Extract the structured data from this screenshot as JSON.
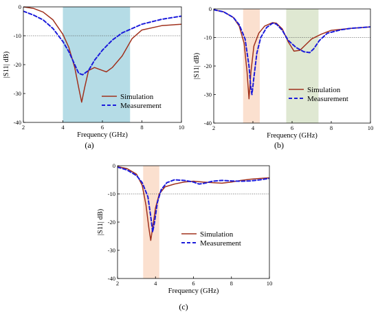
{
  "colors": {
    "simulation": "#a0301c",
    "measurement": "#1a1adb",
    "band_blue": "#b5dce6",
    "band_orange": "#fbe0cf",
    "band_green": "#dfe8d2",
    "ref_line": "#555555"
  },
  "chart_data": [
    {
      "type": "line",
      "panel_label": "(a)",
      "xlabel": "Frequency (GHz)",
      "ylabel": "|S11| dB)",
      "xlim": [
        2,
        10
      ],
      "ylim": [
        -40,
        0
      ],
      "xticks": [
        2,
        4,
        6,
        8,
        10
      ],
      "yticks": [
        0,
        -10,
        -20,
        -30,
        -40
      ],
      "xtick_labels": [
        "2",
        "4",
        "6",
        "8",
        "10"
      ],
      "ytick_labels": [
        "0",
        "-10",
        "-20",
        "-30",
        "-40"
      ],
      "reference_line_y": -10,
      "shaded_bands": [
        {
          "x": [
            4.0,
            7.4
          ],
          "color": "band_blue"
        }
      ],
      "legend": {
        "position": "bottom-right",
        "entries": [
          "Simulation",
          "Measurement"
        ]
      },
      "series": [
        {
          "name": "Simulation",
          "style": "solid",
          "x": [
            2,
            2.5,
            3,
            3.5,
            4,
            4.3,
            4.6,
            4.8,
            4.95,
            5.1,
            5.3,
            5.6,
            6.0,
            6.2,
            6.5,
            7.0,
            7.5,
            8,
            9,
            10
          ],
          "y": [
            0,
            -0.5,
            -1.8,
            -4.5,
            -9.5,
            -14,
            -21,
            -28,
            -33,
            -28,
            -22,
            -21,
            -22,
            -22.5,
            -21,
            -17,
            -11,
            -8,
            -6.5,
            -6
          ]
        },
        {
          "name": "Measurement",
          "style": "dashed",
          "x": [
            2,
            2.5,
            3,
            3.5,
            4,
            4.3,
            4.6,
            4.8,
            5.0,
            5.3,
            5.6,
            6.0,
            6.5,
            7,
            7.5,
            8,
            9,
            10
          ],
          "y": [
            -1.5,
            -2.8,
            -4.5,
            -7.5,
            -12,
            -15.5,
            -20,
            -23,
            -23.5,
            -22,
            -18.5,
            -15,
            -11.5,
            -9,
            -7.5,
            -6,
            -4.3,
            -3.2
          ]
        }
      ]
    },
    {
      "type": "line",
      "panel_label": "(b)",
      "xlabel": "Frequency (GHz)",
      "ylabel": "|S11| dB)",
      "xlim": [
        2,
        10
      ],
      "ylim": [
        -40,
        0
      ],
      "xticks": [
        2,
        4,
        6,
        8,
        10
      ],
      "yticks": [
        0,
        -10,
        -20,
        -30,
        -40
      ],
      "xtick_labels": [
        "2",
        "4",
        "6",
        "8",
        "10"
      ],
      "ytick_labels": [
        "0",
        "-10",
        "-20",
        "-30",
        "-40"
      ],
      "reference_line_y": -10,
      "shaded_bands": [
        {
          "x": [
            3.5,
            4.35
          ],
          "color": "band_orange"
        },
        {
          "x": [
            5.7,
            7.35
          ],
          "color": "band_green"
        }
      ],
      "legend": {
        "position": "bottom-right",
        "entries": [
          "Simulation",
          "Measurement"
        ]
      },
      "series": [
        {
          "name": "Simulation",
          "style": "solid",
          "x": [
            2,
            2.5,
            3,
            3.3,
            3.55,
            3.7,
            3.8,
            3.9,
            4.05,
            4.3,
            4.6,
            5.0,
            5.2,
            5.5,
            5.8,
            6.1,
            6.4,
            6.7,
            7,
            7.5,
            8,
            9,
            10
          ],
          "y": [
            -0.3,
            -1,
            -3,
            -6,
            -12,
            -22,
            -31.5,
            -22,
            -13,
            -8.5,
            -6,
            -4.8,
            -5,
            -7,
            -11.5,
            -14.8,
            -14.5,
            -12.5,
            -10.5,
            -8.8,
            -7.5,
            -6.8,
            -6.3
          ]
        },
        {
          "name": "Measurement",
          "style": "dashed",
          "x": [
            2,
            2.5,
            3,
            3.3,
            3.6,
            3.8,
            3.9,
            3.95,
            4.05,
            4.2,
            4.4,
            4.7,
            5.0,
            5.2,
            5.5,
            5.8,
            6.2,
            6.6,
            6.9,
            7.1,
            7.4,
            7.8,
            8.5,
            9,
            10
          ],
          "y": [
            -0.3,
            -1,
            -3,
            -5.5,
            -10.5,
            -20,
            -28,
            -30,
            -24,
            -15.5,
            -10,
            -6.5,
            -5,
            -5.3,
            -7.5,
            -11,
            -13.5,
            -15,
            -15.3,
            -14,
            -11,
            -8.5,
            -7.3,
            -6.8,
            -6.3
          ]
        }
      ]
    },
    {
      "type": "line",
      "panel_label": "(c)",
      "xlabel": "Frequency (GHz)",
      "ylabel": "|S11| dB)",
      "xlim": [
        2,
        10
      ],
      "ylim": [
        -40,
        0
      ],
      "xticks": [
        2,
        4,
        6,
        8,
        10
      ],
      "yticks": [
        0,
        -10,
        -20,
        -30,
        -40
      ],
      "xtick_labels": [
        "2",
        "4",
        "6",
        "8",
        "10"
      ],
      "ytick_labels": [
        "0",
        "-10",
        "-20",
        "-30",
        "-40"
      ],
      "reference_line_y": -10,
      "shaded_bands": [
        {
          "x": [
            3.35,
            4.2
          ],
          "color": "band_orange"
        }
      ],
      "legend": {
        "position": "bottom-right",
        "entries": [
          "Simulation",
          "Measurement"
        ]
      },
      "series": [
        {
          "name": "Simulation",
          "style": "solid",
          "x": [
            2,
            2.5,
            3,
            3.3,
            3.5,
            3.65,
            3.75,
            3.85,
            4.0,
            4.2,
            4.5,
            5,
            5.5,
            6,
            6.5,
            7,
            7.5,
            8,
            8.5,
            9,
            9.5,
            10
          ],
          "y": [
            -0.3,
            -1,
            -3,
            -7,
            -14,
            -22,
            -26.5,
            -22,
            -15,
            -10,
            -7.5,
            -6.5,
            -5.8,
            -5.5,
            -5.8,
            -6,
            -6.2,
            -5.8,
            -5.2,
            -4.8,
            -4.5,
            -4.3
          ]
        },
        {
          "name": "Measurement",
          "style": "dashed",
          "x": [
            2,
            2.5,
            3,
            3.3,
            3.6,
            3.75,
            3.85,
            3.95,
            4.1,
            4.3,
            4.6,
            5,
            5.5,
            6,
            6.3,
            6.6,
            7,
            7.5,
            8,
            8.5,
            9,
            9.5,
            10
          ],
          "y": [
            -0.5,
            -1.5,
            -3.5,
            -6,
            -11,
            -18,
            -23.5,
            -20,
            -13,
            -8.5,
            -6,
            -5,
            -5.2,
            -5.8,
            -6.5,
            -6.2,
            -5.5,
            -5.2,
            -5.4,
            -5.5,
            -5.4,
            -5,
            -4.5
          ]
        }
      ]
    }
  ]
}
